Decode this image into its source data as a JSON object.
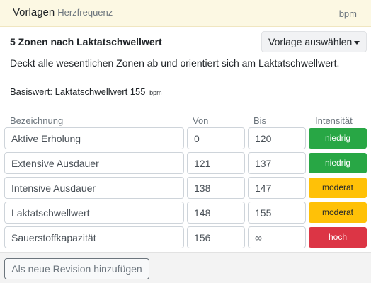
{
  "header": {
    "title": "Vorlagen",
    "subtitle": "Herzfrequenz",
    "unit": "bpm"
  },
  "preset": {
    "title": "5 Zonen nach Laktatschwellwert",
    "dropdown_label": "Vorlage auswählen",
    "description": "Deckt alle wesentlichen Zonen ab und orientiert sich am Laktatschwellwert.",
    "base_label": "Basiswert:",
    "base_value": "Laktatschwellwert 155",
    "base_unit": "bpm"
  },
  "columns": {
    "name": "Bezeichnung",
    "from": "Von",
    "to": "Bis",
    "intensity": "Intensität"
  },
  "zones": [
    {
      "name": "Aktive Erholung",
      "from": "0",
      "to": "120",
      "intensity": "niedrig",
      "level": "low"
    },
    {
      "name": "Extensive Ausdauer",
      "from": "121",
      "to": "137",
      "intensity": "niedrig",
      "level": "low"
    },
    {
      "name": "Intensive Ausdauer",
      "from": "138",
      "to": "147",
      "intensity": "moderat",
      "level": "mid"
    },
    {
      "name": "Laktatschwellwert",
      "from": "148",
      "to": "155",
      "intensity": "moderat",
      "level": "mid"
    },
    {
      "name": "Sauerstoffkapazität",
      "from": "156",
      "to": "∞",
      "intensity": "hoch",
      "level": "high"
    }
  ],
  "footer": {
    "add_revision_label": "Als neue Revision hinzufügen"
  },
  "colors": {
    "low": "#28a745",
    "mid": "#ffc107",
    "high": "#dc3545"
  }
}
